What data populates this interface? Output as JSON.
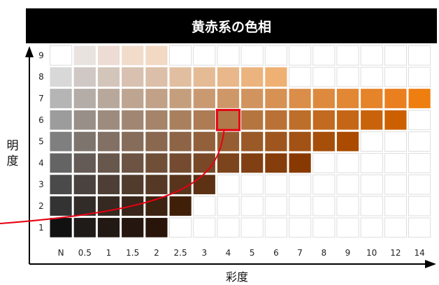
{
  "title": "黄赤系の色相",
  "y_axis_label": "明度",
  "x_axis_label": "彩度",
  "colors": {
    "grid_line": "#ffffff",
    "cell_outline": "#dddddd",
    "highlight": "#e60012",
    "axis": "#000000"
  },
  "chart_data": {
    "type": "heatmap",
    "title": "黄赤系の色相",
    "xlabel": "彩度",
    "ylabel": "明度",
    "x_ticks": [
      "N",
      "0.5",
      "1",
      "1.5",
      "2",
      "2.5",
      "3",
      "4",
      "5",
      "6",
      "7",
      "8",
      "9",
      "10",
      "12",
      "14"
    ],
    "y_ticks": [
      "9",
      "8",
      "7",
      "6",
      "5",
      "4",
      "3",
      "2",
      "1"
    ],
    "highlighted_cell": {
      "value": "6",
      "chroma": "4"
    },
    "rows": [
      {
        "value": "9",
        "cells": [
          "",
          "#e9e3e0",
          "#eddcd3",
          "#f1dccb",
          "#f2d9c4",
          "",
          "",
          "",
          "",
          "",
          "",
          "",
          "",
          "",
          "",
          ""
        ]
      },
      {
        "value": "8",
        "cells": [
          "#d8d8d8",
          "#cfc8c4",
          "#d4c5bb",
          "#d8c1b1",
          "#dcbfa8",
          "#e0be9f",
          "#e4bb95",
          "#e8b88a",
          "#ebb47e",
          "#efb173",
          "",
          "",
          "",
          "",
          "",
          ""
        ]
      },
      {
        "value": "7",
        "cells": [
          "#b5b5b5",
          "#b4aca6",
          "#b8a89c",
          "#bda591",
          "#c1a187",
          "#c59e7d",
          "#c99a72",
          "#cd9768",
          "#d2945e",
          "#d69153",
          "#da8e49",
          "#de8a3e",
          "#e28734",
          "#e6842a",
          "#ea7f1f",
          "#ef7e10"
        ]
      },
      {
        "value": "6",
        "cells": [
          "#9c9c9c",
          "#988f88",
          "#9d8b7e",
          "#a18773",
          "#a58469",
          "#a9805e",
          "#ad7c54",
          "#b1794a",
          "#b5753f",
          "#b97135",
          "#bd6e2a",
          "#c16a20",
          "#c56616",
          "#c9630b",
          "#cc6000",
          ""
        ]
      },
      {
        "value": "5",
        "cells": [
          "#7f7f7f",
          "#7e746e",
          "#827064",
          "#866c5a",
          "#8a6850",
          "#8e6446",
          "#92613c",
          "#965d32",
          "#9a5a28",
          "#9e561e",
          "#a25214",
          "#a64f0a",
          "#aa4b00",
          "",
          "",
          ""
        ]
      },
      {
        "value": "4",
        "cells": [
          "#646464",
          "#645b56",
          "#68574c",
          "#6c5343",
          "#704f39",
          "#744b30",
          "#784827",
          "#7c441d",
          "#804014",
          "#843d0b",
          "#883902",
          "",
          "",
          "",
          "",
          ""
        ]
      },
      {
        "value": "3",
        "cells": [
          "#4a4a4a",
          "#4a423e",
          "#4d3f36",
          "#513b2d",
          "#553825",
          "#59341c",
          "#5d3114",
          "",
          "",
          "",
          "",
          "",
          "",
          "",
          "",
          ""
        ]
      },
      {
        "value": "2",
        "cells": [
          "#333333",
          "#322c29",
          "#352921",
          "#392519",
          "#3c2211",
          "#401f09",
          "",
          "",
          "",
          "",
          "",
          "",
          "",
          "",
          "",
          ""
        ]
      },
      {
        "value": "1",
        "cells": [
          "#111111",
          "#1f1b18",
          "#221914",
          "#25160f",
          "#29140a",
          "",
          "",
          "",
          "",
          "",
          "",
          "",
          "",
          "",
          "",
          ""
        ]
      }
    ]
  }
}
